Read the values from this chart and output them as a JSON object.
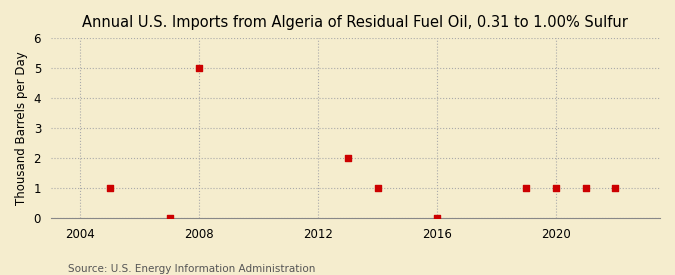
{
  "title": "Annual U.S. Imports from Algeria of Residual Fuel Oil, 0.31 to 1.00% Sulfur",
  "ylabel": "Thousand Barrels per Day",
  "source": "Source: U.S. Energy Information Administration",
  "background_color": "#f5edce",
  "plot_background_color": "#f5edce",
  "years": [
    2005,
    2007,
    2008,
    2013,
    2014,
    2016,
    2019,
    2020,
    2021,
    2022
  ],
  "values": [
    1,
    0,
    5,
    2,
    1,
    0,
    1,
    1,
    1,
    1
  ],
  "xlim": [
    2003,
    2023.5
  ],
  "ylim": [
    0,
    6
  ],
  "xticks": [
    2004,
    2008,
    2012,
    2016,
    2020
  ],
  "yticks": [
    0,
    1,
    2,
    3,
    4,
    5,
    6
  ],
  "marker_color": "#cc0000",
  "marker_size": 5,
  "grid_color": "#aaaaaa",
  "grid_linestyle": ":",
  "title_fontsize": 10.5,
  "label_fontsize": 8.5,
  "tick_fontsize": 8.5,
  "source_fontsize": 7.5
}
